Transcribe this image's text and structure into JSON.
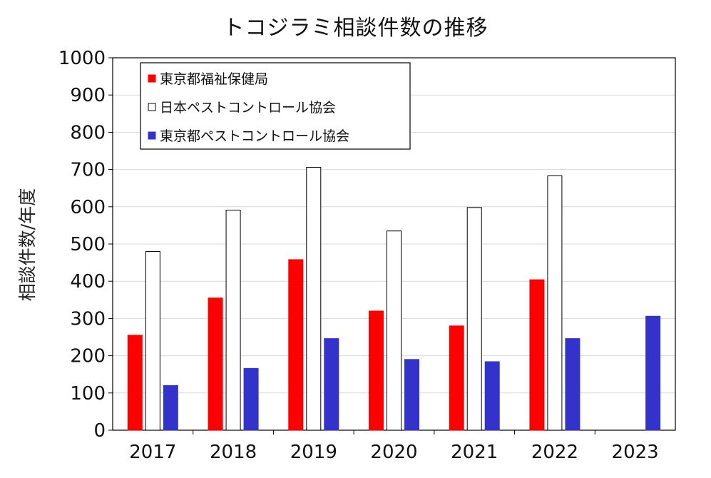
{
  "chart_data": {
    "type": "bar",
    "title": "トコジラミ相談件数の推移",
    "xlabel": "",
    "ylabel": "相談件数/年度",
    "ylim": [
      0,
      1000
    ],
    "yticks": [
      0,
      100,
      200,
      300,
      400,
      500,
      600,
      700,
      800,
      900,
      1000
    ],
    "categories": [
      "2017",
      "2018",
      "2019",
      "2020",
      "2021",
      "2022",
      "2023"
    ],
    "grid": true,
    "legend_position": "top-left",
    "series": [
      {
        "name": "東京都福祉保健局",
        "color": "#ff0000",
        "stroke": "#ff0000",
        "values": [
          255,
          355,
          458,
          320,
          280,
          404,
          null
        ]
      },
      {
        "name": "日本ペストコントロール協会",
        "color": "#ffffff",
        "stroke": "#000000",
        "values": [
          480,
          591,
          706,
          535,
          598,
          683,
          null
        ]
      },
      {
        "name": "東京都ペストコントロール協会",
        "color": "#3333cc",
        "stroke": "#3333cc",
        "values": [
          120,
          166,
          246,
          190,
          184,
          246,
          306
        ]
      }
    ]
  }
}
